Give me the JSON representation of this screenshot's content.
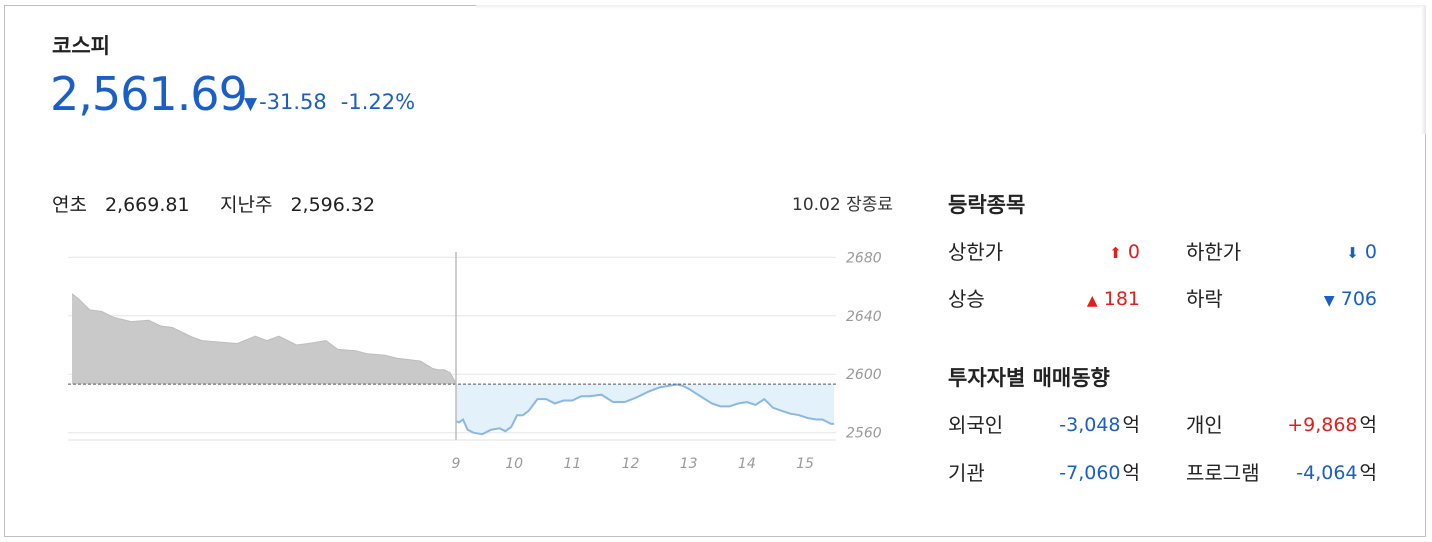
{
  "index": {
    "name": "코스피",
    "value": "2,561.69",
    "change": "-31.58",
    "change_pct": "-1.22%",
    "direction": "down"
  },
  "reference": {
    "year_start_label": "연초",
    "year_start_value": "2,669.81",
    "last_week_label": "지난주",
    "last_week_value": "2,596.32"
  },
  "status": "10.02 장종료",
  "breadth": {
    "title": "등락종목",
    "upper_limit": {
      "label": "상한가",
      "value": "0"
    },
    "lower_limit": {
      "label": "하한가",
      "value": "0"
    },
    "rise": {
      "label": "상승",
      "value": "181"
    },
    "fall": {
      "label": "하락",
      "value": "706"
    }
  },
  "investors": {
    "title": "투자자별 매매동향",
    "unit": "억",
    "foreign": {
      "label": "외국인",
      "value": "-3,048"
    },
    "individual": {
      "label": "개인",
      "value": "+9,868"
    },
    "institution": {
      "label": "기관",
      "value": "-7,060"
    },
    "program": {
      "label": "프로그램",
      "value": "-4,064"
    }
  },
  "colors": {
    "up": "#e0201b",
    "down": "#1a5fc7",
    "prev_area": "#c9c9c9",
    "today_area": "#e3f1fb",
    "today_line": "#8ab8e6"
  },
  "chart_data": {
    "type": "area",
    "y_ticks": [
      "2680",
      "2640",
      "2600",
      "2560"
    ],
    "ylim": [
      2555,
      2685
    ],
    "x_ticks": [
      "9",
      "10",
      "11",
      "12",
      "13",
      "14",
      "15"
    ],
    "baseline": 2593.27,
    "series": [
      {
        "name": "",
        "x": [
          -6.5,
          -6.4,
          -6.2,
          -6.0,
          -5.8,
          -5.5,
          -5.2,
          -5.0,
          -4.8,
          -4.5,
          -4.3,
          -4.0,
          -3.7,
          -3.4,
          -3.2,
          -3.0,
          -2.7,
          -2.5,
          -2.2,
          -2.0,
          -1.7,
          -1.5,
          -1.2,
          -1.0,
          -0.8,
          -0.6,
          -0.4,
          -0.3,
          -0.2,
          -0.1,
          0.0
        ],
        "values": [
          2655,
          2652,
          2644,
          2643,
          2639,
          2636,
          2637,
          2633,
          2632,
          2626,
          2623,
          2622,
          2621,
          2626,
          2623,
          2626,
          2620,
          2621,
          2623,
          2617,
          2616,
          2614,
          2613,
          2611,
          2610,
          2609,
          2604,
          2603,
          2603,
          2601,
          2594
        ]
      },
      {
        "name": "",
        "x": [
          9.0,
          9.05,
          9.12,
          9.2,
          9.3,
          9.45,
          9.6,
          9.75,
          9.85,
          9.95,
          10.05,
          10.15,
          10.25,
          10.4,
          10.55,
          10.7,
          10.85,
          11.0,
          11.15,
          11.3,
          11.5,
          11.7,
          11.9,
          12.1,
          12.3,
          12.5,
          12.65,
          12.8,
          12.9,
          13.0,
          13.2,
          13.4,
          13.55,
          13.7,
          13.85,
          14.0,
          14.15,
          14.3,
          14.45,
          14.6,
          14.75,
          14.9,
          15.05,
          15.2,
          15.3,
          15.35,
          15.4,
          15.45,
          15.5
        ],
        "values": [
          2568,
          2567,
          2569,
          2562,
          2560,
          2559,
          2562,
          2563,
          2561,
          2564,
          2572,
          2572,
          2575,
          2583,
          2583,
          2580,
          2582,
          2582,
          2585,
          2585,
          2586,
          2581,
          2581,
          2584,
          2588,
          2591,
          2592,
          2593,
          2592,
          2590,
          2585,
          2580,
          2578,
          2578,
          2580,
          2581,
          2579,
          2583,
          2577,
          2575,
          2573,
          2572,
          2570,
          2569,
          2569,
          2568,
          2567,
          2566,
          2566
        ]
      }
    ],
    "grid": true
  }
}
